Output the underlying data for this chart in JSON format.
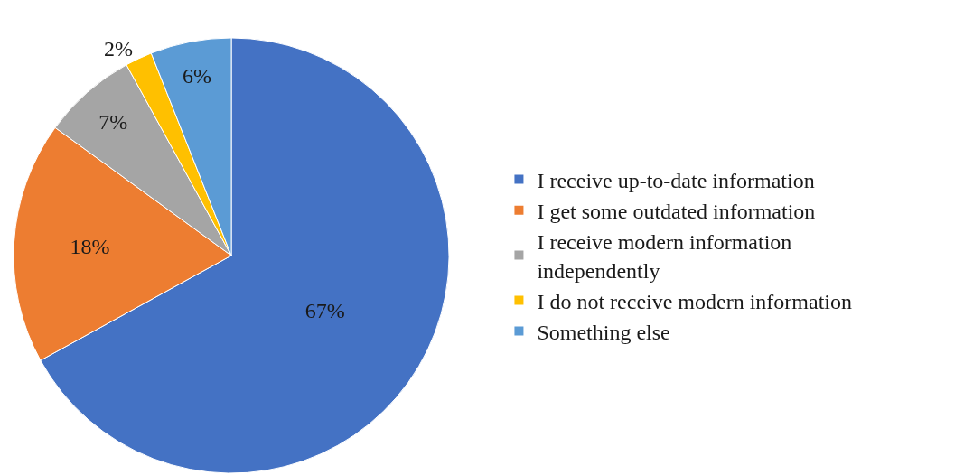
{
  "chart_data": {
    "type": "pie",
    "categories": [
      "I receive up-to-date information",
      "I get some outdated information",
      "I receive modern information independently",
      "I do not receive modern information",
      "Something else"
    ],
    "values": [
      67,
      18,
      7,
      2,
      6
    ],
    "colors": [
      "#4472c4",
      "#ed7d31",
      "#a5a5a5",
      "#ffc000",
      "#5b9bd5"
    ],
    "value_labels": [
      "67%",
      "18%",
      "7%",
      "2%",
      "6%"
    ],
    "legend": "right"
  }
}
